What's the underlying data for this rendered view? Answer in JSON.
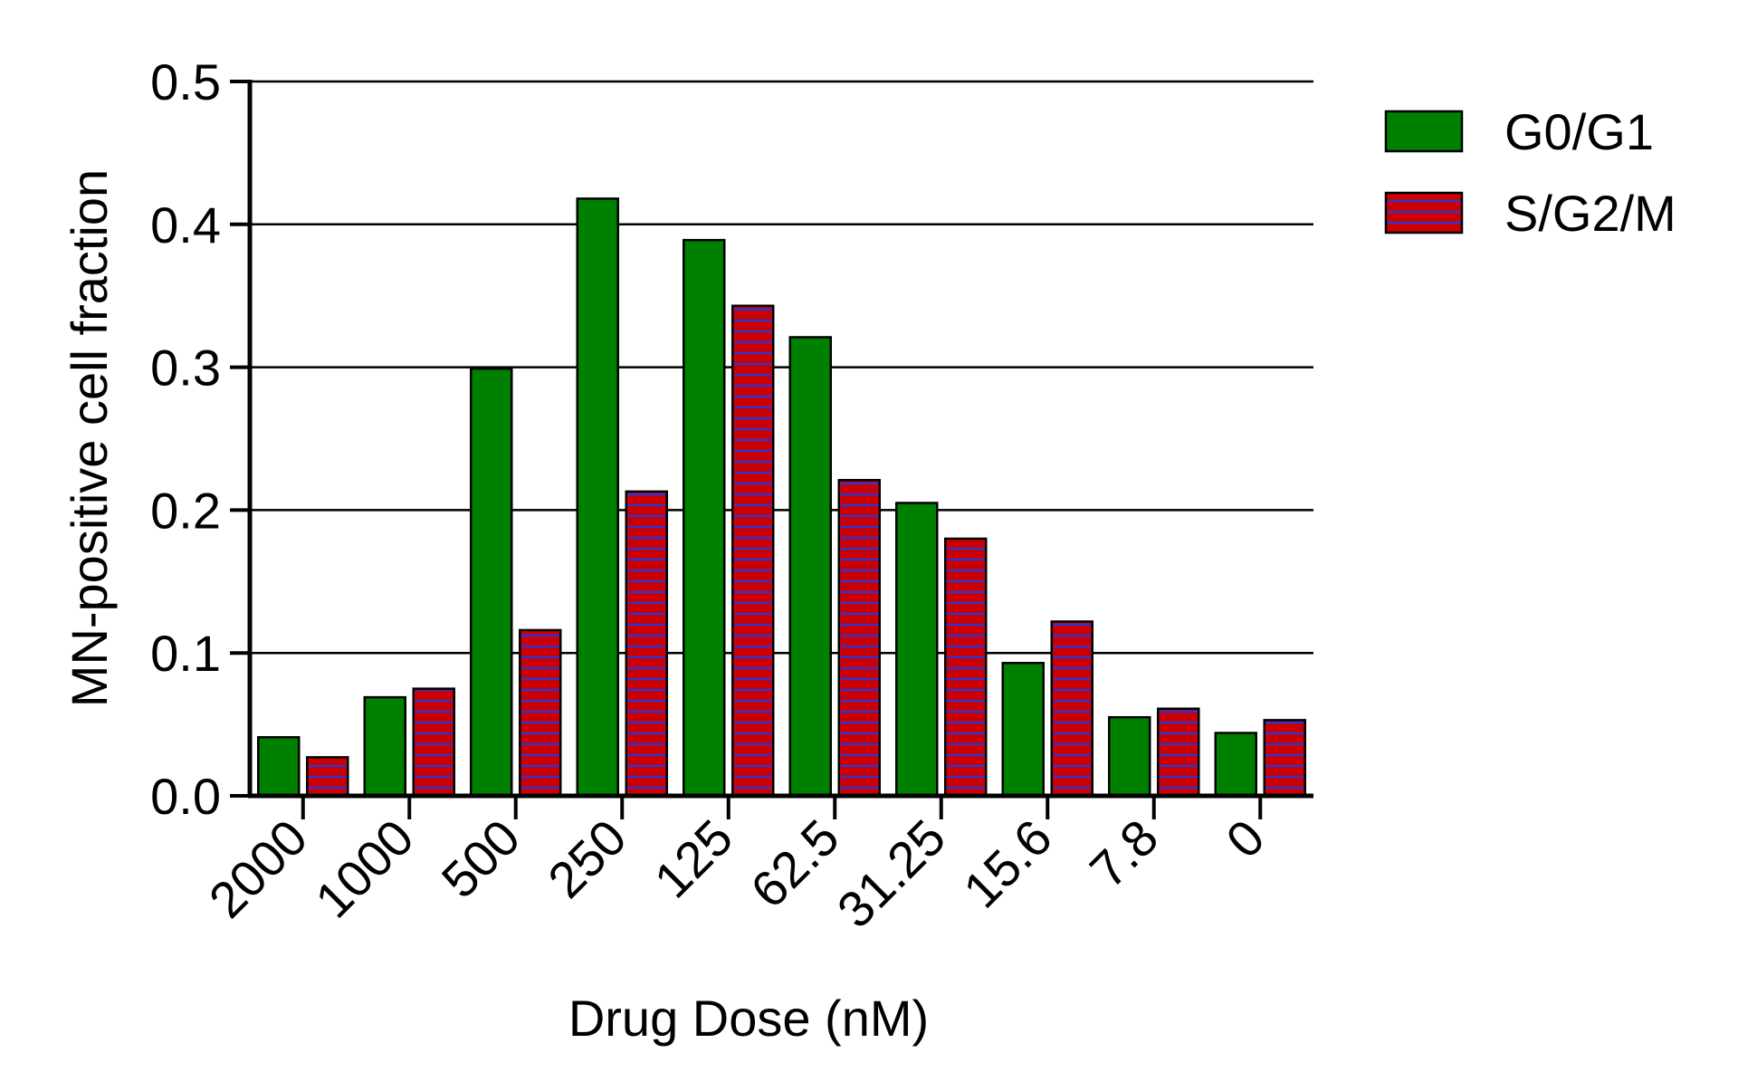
{
  "chart_data": {
    "type": "bar",
    "xlabel": "Drug Dose (nM)",
    "ylabel": "MN-positive cell fraction",
    "categories": [
      "2000",
      "1000",
      "500",
      "250",
      "125",
      "62.5",
      "31.25",
      "15.6",
      "7.8",
      "0"
    ],
    "ylim": [
      0,
      0.5
    ],
    "yticks": [
      "0.0",
      "0.1",
      "0.2",
      "0.3",
      "0.4",
      "0.5"
    ],
    "grid": "horizontal",
    "legend_position": "top-right",
    "series": [
      {
        "name": "G0/G1",
        "color": "#008000",
        "pattern": "solid",
        "values": [
          0.041,
          0.069,
          0.299,
          0.418,
          0.389,
          0.321,
          0.205,
          0.093,
          0.055,
          0.044
        ]
      },
      {
        "name": "S/G2/M",
        "color": "#cc0000",
        "stripe_color": "#3333cc",
        "pattern": "horizontal-stripes",
        "values": [
          0.027,
          0.075,
          0.116,
          0.213,
          0.343,
          0.221,
          0.18,
          0.122,
          0.061,
          0.053
        ]
      }
    ]
  }
}
